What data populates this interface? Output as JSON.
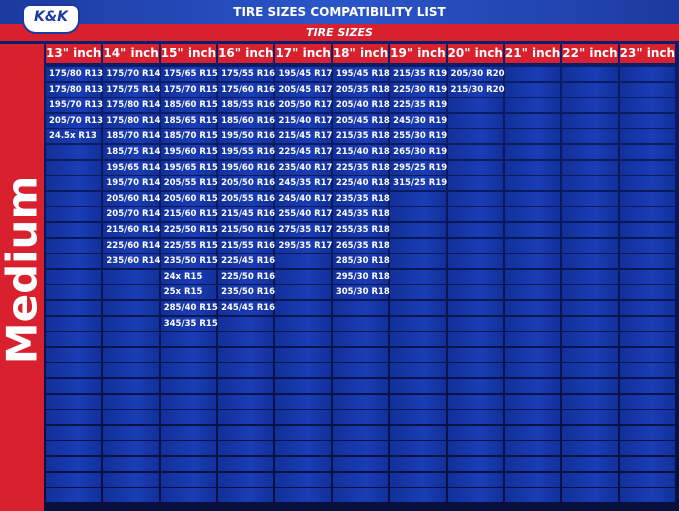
{
  "header": {
    "logo": "K&K",
    "title": "TIRE SIZES COMPATIBILITY LIST",
    "subtitle": "TIRE SIZES"
  },
  "side_label": "Medium",
  "table": {
    "headers": [
      "13\" inch",
      "14\" inch",
      "15\" inch",
      "16\" inch",
      "17\" inch",
      "18\" inch",
      "19\" inch",
      "20\" inch",
      "21\" inch",
      "22\" inch",
      "23\" inch"
    ],
    "columns": [
      [
        "175/80 R13",
        "175/80 R13",
        "195/70 R13",
        "205/70 R13",
        "24.5x R13"
      ],
      [
        "175/70 R14",
        "175/75 R14",
        "175/80 R14",
        "175/80 R14",
        "185/70 R14",
        "185/75 R14",
        "195/65 R14",
        "195/70 R14",
        "205/60 R14",
        "205/70 R14",
        "215/60 R14",
        "225/60 R14",
        "235/60 R14"
      ],
      [
        "175/65 R15",
        "175/70 R15",
        "185/60 R15",
        "185/65 R15",
        "185/70 R15",
        "195/60 R15",
        "195/65 R15",
        "205/55 R15",
        "205/60 R15",
        "215/60 R15",
        "225/50 R15",
        "225/55 R15",
        "235/50 R15",
        "24x R15",
        "25x R15",
        "285/40 R15",
        "345/35 R15"
      ],
      [
        "175/55 R16",
        "175/60 R16",
        "185/55 R16",
        "185/60 R16",
        "195/50 R16",
        "195/55 R16",
        "195/60 R16",
        "205/50 R16",
        "205/55 R16",
        "215/45 R16",
        "215/50 R16",
        "215/55 R16",
        "225/45 R16",
        "225/50 R16",
        "235/50 R16",
        "245/45 R16"
      ],
      [
        "195/45 R17",
        "205/45 R17",
        "205/50 R17",
        "215/40 R17",
        "215/45 R17",
        "225/45 R17",
        "235/40 R17",
        "245/35 R17",
        "245/40 R17",
        "255/40 R17",
        "275/35 R17",
        "295/35 R17"
      ],
      [
        "195/45 R18",
        "205/35 R18",
        "205/40 R18",
        "205/45 R18",
        "215/35 R18",
        "215/40 R18",
        "225/35 R18",
        "225/40 R18",
        "235/35 R18",
        "245/35 R18",
        "255/35 R18",
        "265/35 R18",
        "285/30 R18",
        "295/30 R18",
        "305/30 R18"
      ],
      [
        "215/35 R19",
        "225/30 R19",
        "225/35 R19",
        "245/30 R19",
        "255/30 R19",
        "265/30 R19",
        "295/25 R19",
        "315/25 R19"
      ],
      [
        "205/30 R20",
        "215/30 R20"
      ],
      [],
      [],
      []
    ]
  }
}
